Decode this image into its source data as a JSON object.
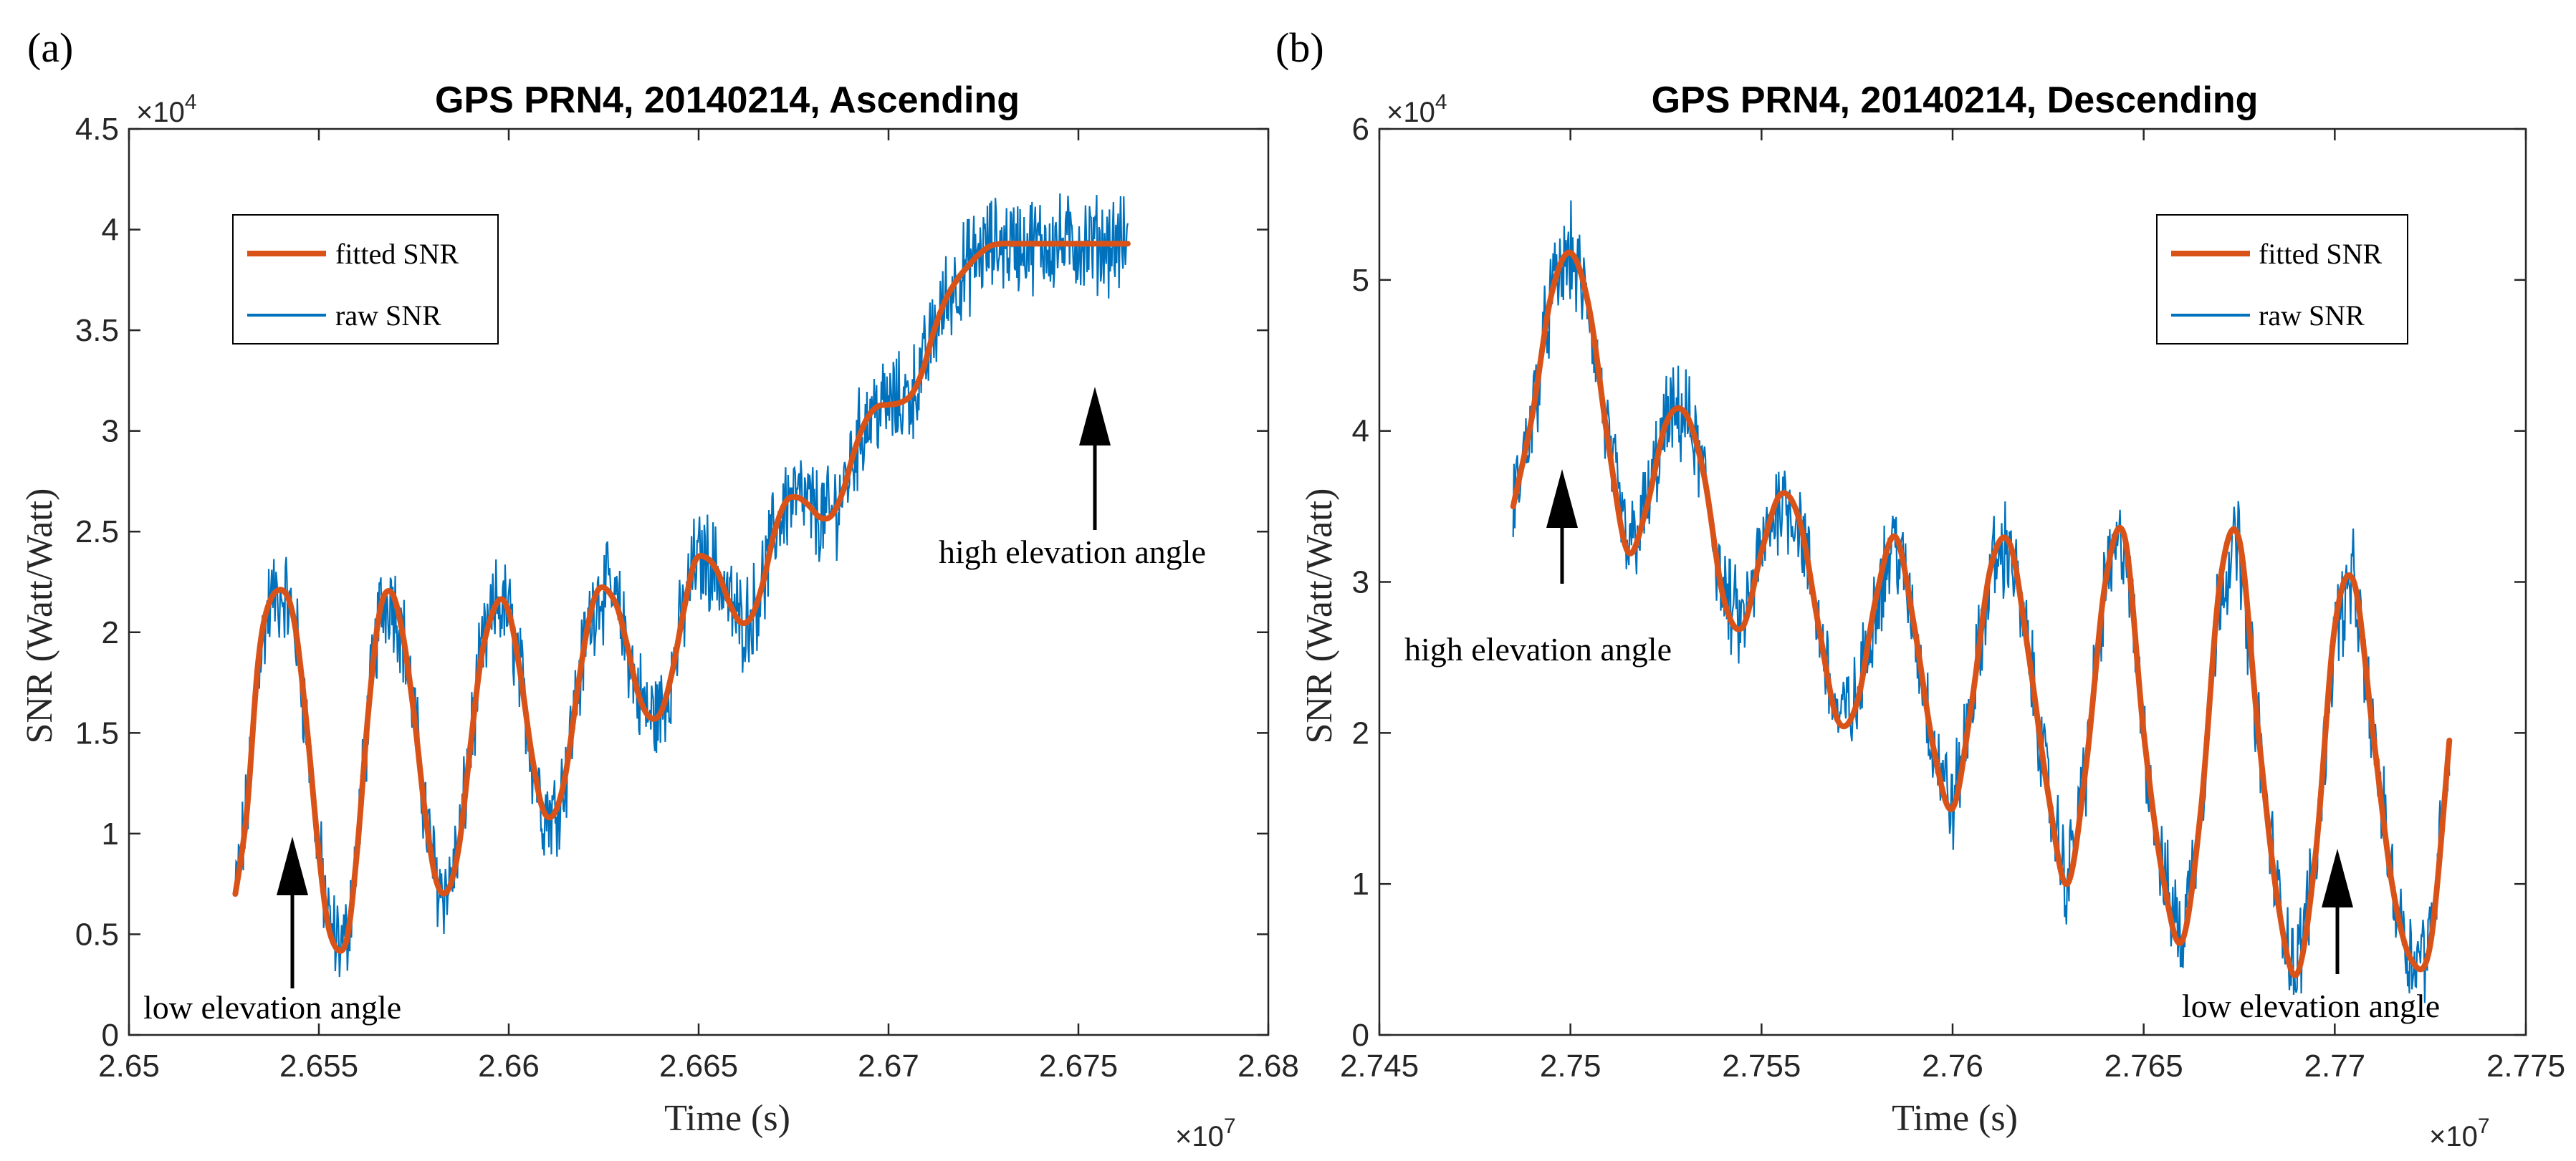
{
  "chart_data": [
    {
      "panel": "(a)",
      "type": "line",
      "title": "GPS PRN4, 20140214, Ascending",
      "xlabel": "Time (s)",
      "ylabel": "SNR (Watt/Watt)",
      "x_multiplier": "×10",
      "x_exponent": "7",
      "y_multiplier": "×10",
      "y_exponent": "4",
      "xlim": [
        2.65,
        2.68
      ],
      "ylim": [
        0,
        4.5
      ],
      "xticks": [
        "2.65",
        "2.655",
        "2.66",
        "2.665",
        "2.67",
        "2.675",
        "2.68"
      ],
      "xtick_values": [
        2.65,
        2.655,
        2.66,
        2.665,
        2.67,
        2.675,
        2.68
      ],
      "yticks": [
        "0",
        "0.5",
        "1",
        "1.5",
        "2",
        "2.5",
        "3",
        "3.5",
        "4",
        "4.5"
      ],
      "ytick_values": [
        0,
        0.5,
        1,
        1.5,
        2,
        2.5,
        3,
        3.5,
        4,
        4.5
      ],
      "legend": {
        "placement": "upper-left",
        "entries": [
          "fitted SNR",
          "raw SNR"
        ]
      },
      "series": [
        {
          "name": "fitted SNR",
          "color": "#D95319",
          "x": [
            2.6528,
            2.6531,
            2.6534,
            2.6537,
            2.6541,
            2.6544,
            2.6547,
            2.655,
            2.6553,
            2.6557,
            2.656,
            2.6563,
            2.6566,
            2.6569,
            2.6572,
            2.6575,
            2.6578,
            2.6581,
            2.6584,
            2.6587,
            2.659,
            2.6593,
            2.6597,
            2.66,
            2.6603,
            2.6606,
            2.6609,
            2.6612,
            2.6615,
            2.6618,
            2.6621,
            2.6624,
            2.6628,
            2.6631,
            2.6634,
            2.6637,
            2.664,
            2.6643,
            2.6646,
            2.6649,
            2.6652,
            2.6655,
            2.6658,
            2.6661,
            2.6664,
            2.6667,
            2.667,
            2.6673,
            2.6676,
            2.6679,
            2.6682,
            2.6685,
            2.6688,
            2.6691,
            2.6694,
            2.6697,
            2.67,
            2.6703,
            2.6706,
            2.6709,
            2.6712,
            2.6715,
            2.6718,
            2.6721,
            2.6724,
            2.6727,
            2.673,
            2.6733,
            2.6736,
            2.6739,
            2.6742,
            2.6745,
            2.6748,
            2.6751,
            2.6754,
            2.6757,
            2.676,
            2.6763
          ],
          "y": [
            0.7,
            1.1,
            1.85,
            2.15,
            2.2,
            2.0,
            1.5,
            0.9,
            0.5,
            0.45,
            0.9,
            1.6,
            2.1,
            2.2,
            2.0,
            1.6,
            1.1,
            0.76,
            0.72,
            0.95,
            1.45,
            1.9,
            2.15,
            2.1,
            1.8,
            1.4,
            1.12,
            1.1,
            1.3,
            1.7,
            2.05,
            2.22,
            2.15,
            1.95,
            1.7,
            1.58,
            1.6,
            1.8,
            2.1,
            2.35,
            2.37,
            2.3,
            2.15,
            2.05,
            2.08,
            2.25,
            2.5,
            2.65,
            2.67,
            2.63,
            2.57,
            2.58,
            2.7,
            2.9,
            3.05,
            3.12,
            3.13,
            3.14,
            3.18,
            3.3,
            3.5,
            3.65,
            3.75,
            3.82,
            3.88,
            3.92,
            3.93,
            3.93,
            3.93,
            3.93,
            3.93,
            3.93,
            3.93,
            3.93,
            3.93,
            3.93,
            3.93,
            3.93
          ]
        },
        {
          "name": "raw SNR",
          "color": "#0072BD",
          "description_values": "noisy measured SNR scattered around the fitted curve (±0.15–0.35 ×10^4), same x range 2.6528–2.6764 ×10^7"
        }
      ],
      "annotations": [
        "low elevation angle",
        "high elevation angle"
      ]
    },
    {
      "panel": "(b)",
      "type": "line",
      "title": "GPS PRN4, 20140214, Descending",
      "xlabel": "Time (s)",
      "ylabel": "SNR (Watt/Watt)",
      "x_multiplier": "×10",
      "x_exponent": "7",
      "y_multiplier": "×10",
      "y_exponent": "4",
      "xlim": [
        2.745,
        2.775
      ],
      "ylim": [
        0,
        6
      ],
      "xticks": [
        "2.745",
        "2.75",
        "2.755",
        "2.76",
        "2.765",
        "2.77",
        "2.775"
      ],
      "xtick_values": [
        2.745,
        2.75,
        2.755,
        2.76,
        2.765,
        2.77,
        2.775
      ],
      "yticks": [
        "0",
        "1",
        "2",
        "3",
        "4",
        "5",
        "6"
      ],
      "ytick_values": [
        0,
        1,
        2,
        3,
        4,
        5,
        6
      ],
      "legend": {
        "placement": "upper-right",
        "entries": [
          "fitted SNR",
          "raw SNR"
        ]
      },
      "series": [
        {
          "name": "fitted SNR",
          "color": "#D95319",
          "x": [
            2.7485,
            2.749,
            2.7495,
            2.75,
            2.7505,
            2.751,
            2.7515,
            2.752,
            2.7525,
            2.753,
            2.7535,
            2.754,
            2.7545,
            2.755,
            2.7555,
            2.756,
            2.7565,
            2.757,
            2.7575,
            2.758,
            2.7585,
            2.759,
            2.7595,
            2.76,
            2.7605,
            2.761,
            2.7615,
            2.762,
            2.7625,
            2.763,
            2.7635,
            2.764,
            2.7645,
            2.765,
            2.7655,
            2.766,
            2.7665,
            2.767,
            2.7675,
            2.768,
            2.7685,
            2.769,
            2.7695,
            2.77,
            2.7705,
            2.771,
            2.7715,
            2.772,
            2.7725,
            2.773
          ],
          "y": [
            3.5,
            4.1,
            4.9,
            5.18,
            4.8,
            3.9,
            3.2,
            3.5,
            4.05,
            4.12,
            3.7,
            2.9,
            2.7,
            3.2,
            3.58,
            3.4,
            2.7,
            2.08,
            2.2,
            2.9,
            3.3,
            2.7,
            1.9,
            1.5,
            2.2,
            3.1,
            3.25,
            2.5,
            1.6,
            1.0,
            1.8,
            3.0,
            3.3,
            2.0,
            1.05,
            0.62,
            1.5,
            3.0,
            3.28,
            2.0,
            0.9,
            0.4,
            1.2,
            2.7,
            3.0,
            2.0,
            1.0,
            0.5,
            0.6,
            1.95
          ]
        },
        {
          "name": "raw SNR",
          "color": "#0072BD",
          "description_values": "noisy measured SNR scattered around the fitted curve (±0.15–0.35 ×10^4), same x range 2.7485–2.7730 ×10^7"
        }
      ],
      "annotations": [
        "high elevation angle",
        "low elevation angle"
      ]
    }
  ]
}
